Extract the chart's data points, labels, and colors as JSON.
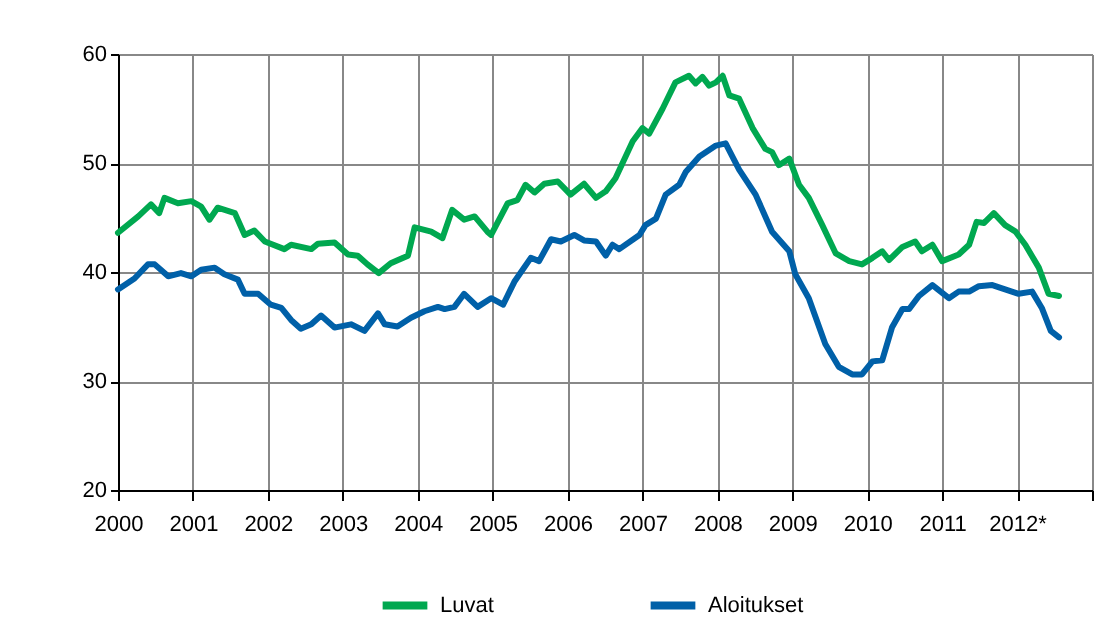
{
  "chart_data": {
    "type": "line",
    "xlim": [
      2000,
      2013
    ],
    "xticks": [
      {
        "value": 2000,
        "label": "2000"
      },
      {
        "value": 2001,
        "label": "2001"
      },
      {
        "value": 2002,
        "label": "2002"
      },
      {
        "value": 2003,
        "label": "2003"
      },
      {
        "value": 2004,
        "label": "2004"
      },
      {
        "value": 2005,
        "label": "2005"
      },
      {
        "value": 2006,
        "label": "2006"
      },
      {
        "value": 2007,
        "label": "2007"
      },
      {
        "value": 2008,
        "label": "2008"
      },
      {
        "value": 2009,
        "label": "2009"
      },
      {
        "value": 2010,
        "label": "2010"
      },
      {
        "value": 2011,
        "label": "2011"
      },
      {
        "value": 2012,
        "label": "2012*"
      },
      {
        "value": 2013,
        "label": null
      }
    ],
    "ylim": [
      20,
      60
    ],
    "yticks": [
      20,
      30,
      40,
      50,
      60
    ],
    "grid": true,
    "legend": "bottom",
    "line_style": "solid",
    "marker": "none",
    "series": [
      {
        "name": "Luvat",
        "color": "#00a850",
        "x": [
          2000.0,
          2000.27,
          2000.44,
          2000.55,
          2000.62,
          2000.8,
          2000.98,
          2001.11,
          2001.22,
          2001.33,
          2001.56,
          2001.69,
          2001.82,
          2001.96,
          2002.22,
          2002.31,
          2002.58,
          2002.67,
          2002.89,
          2003.07,
          2003.2,
          2003.33,
          2003.48,
          2003.64,
          2003.87,
          2003.96,
          2004.18,
          2004.33,
          2004.46,
          2004.62,
          2004.76,
          2004.93,
          2004.98,
          2005.2,
          2005.33,
          2005.44,
          2005.56,
          2005.69,
          2005.87,
          2006.04,
          2006.22,
          2006.38,
          2006.51,
          2006.64,
          2006.87,
          2007.0,
          2007.09,
          2007.27,
          2007.44,
          2007.62,
          2007.71,
          2007.8,
          2007.89,
          2007.98,
          2008.07,
          2008.16,
          2008.29,
          2008.47,
          2008.64,
          2008.73,
          2008.82,
          2008.96,
          2009.09,
          2009.22,
          2009.4,
          2009.58,
          2009.76,
          2009.93,
          2010.07,
          2010.2,
          2010.29,
          2010.47,
          2010.64,
          2010.73,
          2010.87,
          2011.0,
          2011.22,
          2011.36,
          2011.46,
          2011.56,
          2011.69,
          2011.84,
          2011.98,
          2012.11,
          2012.29,
          2012.42,
          2012.56
        ],
        "values": [
          43.6,
          45.1,
          46.2,
          45.4,
          46.8,
          46.3,
          46.5,
          46,
          44.8,
          45.9,
          45.4,
          43.4,
          43.8,
          42.8,
          42.1,
          42.5,
          42.1,
          42.6,
          42.7,
          41.6,
          41.5,
          40.7,
          39.9,
          40.8,
          41.5,
          44.1,
          43.7,
          43.1,
          45.7,
          44.8,
          45.1,
          43.7,
          43.4,
          46.3,
          46.6,
          48.0,
          47.3,
          48.1,
          48.3,
          47.1,
          48.1,
          46.8,
          47.4,
          48.6,
          52.0,
          53.2,
          52.7,
          55.0,
          57.4,
          58.0,
          57.3,
          57.9,
          57.1,
          57.4,
          58.0,
          56.2,
          55.9,
          53.2,
          51.3,
          51.0,
          49.8,
          50.4,
          48.0,
          46.8,
          44.3,
          41.7,
          41.0,
          40.7,
          41.3,
          41.9,
          41.1,
          42.3,
          42.8,
          41.9,
          42.5,
          41.0,
          41.6,
          42.5,
          44.6,
          44.5,
          45.4,
          44.3,
          43.7,
          42.5,
          40.4,
          38.0,
          37.8
        ]
      },
      {
        "name": "Aloitukset",
        "color": "#0060a8",
        "x": [
          2000.0,
          2000.22,
          2000.4,
          2000.49,
          2000.67,
          2000.84,
          2000.98,
          2001.11,
          2001.29,
          2001.42,
          2001.6,
          2001.69,
          2001.87,
          2002.04,
          2002.18,
          2002.31,
          2002.44,
          2002.58,
          2002.71,
          2002.89,
          2003.11,
          2003.29,
          2003.47,
          2003.56,
          2003.73,
          2003.91,
          2004.09,
          2004.27,
          2004.36,
          2004.49,
          2004.62,
          2004.8,
          2004.98,
          2005.14,
          2005.29,
          2005.51,
          2005.62,
          2005.78,
          2005.91,
          2006.09,
          2006.22,
          2006.38,
          2006.51,
          2006.6,
          2006.69,
          2006.96,
          2007.04,
          2007.18,
          2007.31,
          2007.49,
          2007.58,
          2007.76,
          2007.98,
          2008.11,
          2008.29,
          2008.51,
          2008.73,
          2008.96,
          2009.04,
          2009.22,
          2009.44,
          2009.62,
          2009.8,
          2009.93,
          2010.07,
          2010.2,
          2010.33,
          2010.47,
          2010.56,
          2010.69,
          2010.87,
          2011.09,
          2011.22,
          2011.36,
          2011.49,
          2011.67,
          2011.84,
          2012.02,
          2012.2,
          2012.33,
          2012.45,
          2012.56
        ],
        "values": [
          38.4,
          39.4,
          40.7,
          40.7,
          39.6,
          39.9,
          39.6,
          40.2,
          40.4,
          39.8,
          39.3,
          38.0,
          38.0,
          37.0,
          36.7,
          35.6,
          34.8,
          35.2,
          36.0,
          34.9,
          35.2,
          34.6,
          36.2,
          35.2,
          35.0,
          35.8,
          36.4,
          36.8,
          36.6,
          36.8,
          38.0,
          36.8,
          37.6,
          37.0,
          39.1,
          41.3,
          41.0,
          43.0,
          42.8,
          43.4,
          42.9,
          42.8,
          41.5,
          42.5,
          42.1,
          43.4,
          44.3,
          44.9,
          47.1,
          48.0,
          49.2,
          50.6,
          51.6,
          51.8,
          49.4,
          47.1,
          43.7,
          41.9,
          39.8,
          37.6,
          33.4,
          31.3,
          30.6,
          30.6,
          31.8,
          31.9,
          34.9,
          36.6,
          36.6,
          37.8,
          38.8,
          37.6,
          38.2,
          38.2,
          38.7,
          38.8,
          38.4,
          38.0,
          38.2,
          36.7,
          34.6,
          34.0
        ]
      }
    ]
  }
}
